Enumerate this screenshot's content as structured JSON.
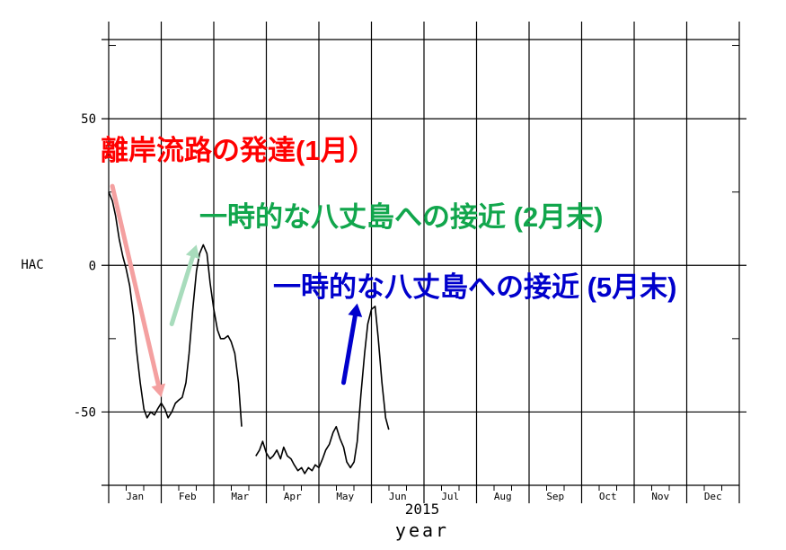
{
  "chart_data": {
    "type": "line",
    "title": "",
    "ylabel": "HAC",
    "xlabel": "year",
    "year_label": "2015",
    "xlim": [
      0,
      12
    ],
    "ylim": [
      -75,
      77
    ],
    "yticks": [
      {
        "value": 50,
        "label": "50"
      },
      {
        "value": 0,
        "label": "0"
      },
      {
        "value": -50,
        "label": "-50"
      }
    ],
    "month_labels": [
      "Jan",
      "Feb",
      "Mar",
      "Apr",
      "May",
      "Jun",
      "Jul",
      "Aug",
      "Sep",
      "Oct",
      "Nov",
      "Dec"
    ],
    "grid": true,
    "series": [
      {
        "color": "#000000",
        "segments": [
          [
            [
              0.0,
              25
            ],
            [
              0.07,
              22
            ],
            [
              0.13,
              17
            ],
            [
              0.2,
              9
            ],
            [
              0.27,
              3
            ],
            [
              0.33,
              -1
            ],
            [
              0.4,
              -7
            ],
            [
              0.47,
              -17
            ],
            [
              0.53,
              -29
            ],
            [
              0.6,
              -40
            ],
            [
              0.67,
              -49
            ],
            [
              0.73,
              -52
            ],
            [
              0.8,
              -50
            ],
            [
              0.87,
              -51
            ],
            [
              0.93,
              -49
            ],
            [
              1.0,
              -47
            ],
            [
              1.07,
              -49
            ],
            [
              1.13,
              -52
            ],
            [
              1.2,
              -50
            ],
            [
              1.27,
              -47
            ],
            [
              1.33,
              -46
            ],
            [
              1.4,
              -45
            ],
            [
              1.47,
              -40
            ],
            [
              1.53,
              -30
            ],
            [
              1.6,
              -15
            ],
            [
              1.67,
              -2
            ],
            [
              1.73,
              4
            ],
            [
              1.8,
              7
            ],
            [
              1.87,
              4
            ],
            [
              1.93,
              -6
            ],
            [
              2.0,
              -15
            ],
            [
              2.07,
              -22
            ],
            [
              2.13,
              -25
            ],
            [
              2.2,
              -25
            ],
            [
              2.27,
              -24
            ],
            [
              2.33,
              -26
            ],
            [
              2.4,
              -30
            ],
            [
              2.47,
              -40
            ],
            [
              2.53,
              -55
            ]
          ],
          [
            [
              2.8,
              -65
            ],
            [
              2.87,
              -63
            ],
            [
              2.93,
              -60
            ],
            [
              3.0,
              -64
            ],
            [
              3.07,
              -66
            ],
            [
              3.13,
              -65
            ],
            [
              3.2,
              -63
            ],
            [
              3.27,
              -66
            ],
            [
              3.33,
              -62
            ],
            [
              3.4,
              -65
            ],
            [
              3.47,
              -66
            ],
            [
              3.53,
              -68
            ],
            [
              3.6,
              -70
            ],
            [
              3.67,
              -69
            ],
            [
              3.73,
              -71
            ],
            [
              3.8,
              -69
            ],
            [
              3.87,
              -70
            ],
            [
              3.93,
              -68
            ],
            [
              4.0,
              -69
            ],
            [
              4.07,
              -66
            ],
            [
              4.13,
              -63
            ],
            [
              4.2,
              -61
            ],
            [
              4.27,
              -57
            ],
            [
              4.33,
              -55
            ],
            [
              4.4,
              -59
            ],
            [
              4.47,
              -62
            ],
            [
              4.53,
              -67
            ],
            [
              4.6,
              -69
            ],
            [
              4.67,
              -67
            ],
            [
              4.73,
              -60
            ],
            [
              4.8,
              -44
            ],
            [
              4.87,
              -30
            ],
            [
              4.93,
              -20
            ],
            [
              5.0,
              -15
            ],
            [
              5.07,
              -14
            ],
            [
              5.13,
              -25
            ],
            [
              5.2,
              -40
            ],
            [
              5.27,
              -52
            ],
            [
              5.33,
              -56
            ]
          ]
        ]
      }
    ],
    "annotations": [
      {
        "text": "離岸流路の発達(1月）",
        "color": "#ff0000"
      },
      {
        "text": "一時的な八丈島への接近 (2月末)",
        "color": "#11a64c"
      },
      {
        "text": "一時的な八丈島への接近 (5月末)",
        "color": "#0000cc"
      }
    ],
    "arrows": [
      {
        "color": "#f4a0a0",
        "from": [
          0.07,
          27
        ],
        "to": [
          1.0,
          -45
        ]
      },
      {
        "color": "#a8dcbc",
        "from": [
          1.2,
          -20
        ],
        "to": [
          1.67,
          7
        ]
      },
      {
        "color": "#0000cc",
        "from": [
          4.47,
          -40
        ],
        "to": [
          4.73,
          -13
        ]
      }
    ]
  }
}
